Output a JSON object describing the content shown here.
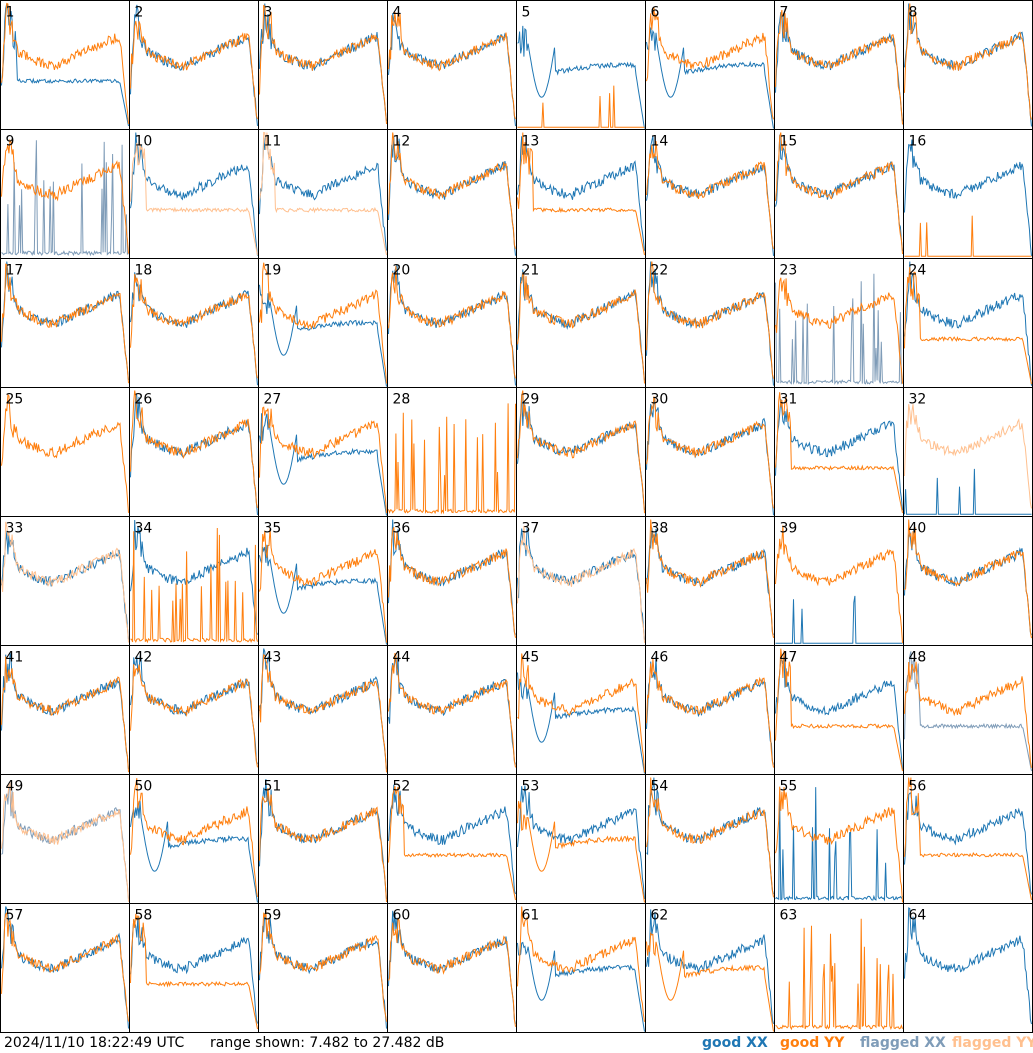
{
  "footer": {
    "timestamp": "2024/11/10 18:22:49 UTC",
    "range_text": "range shown: 7.482 to 27.482 dB",
    "legend": {
      "good_xx": "good XX",
      "good_yy": "good YY",
      "flagged_xx": "flagged XX",
      "flagged_yy": "flagged YY"
    }
  },
  "colors": {
    "good_xx": "#1f77b4",
    "good_yy": "#ff7f0e",
    "flagged_xx": "#7f9cb8",
    "flagged_yy": "#ffc08f"
  },
  "chart_data": {
    "type": "line",
    "grid": "8x8 small multiples, one panel per antenna",
    "ylim_db": [
      7.482,
      27.482
    ],
    "panels": [
      {
        "id": "1",
        "xx": "good",
        "yy": "good",
        "xx_shape": "lowplateau",
        "yy_shape": "standard"
      },
      {
        "id": "2",
        "xx": "good",
        "yy": "good",
        "xx_shape": "standard",
        "yy_shape": "standard"
      },
      {
        "id": "3",
        "xx": "good",
        "yy": "good",
        "xx_shape": "standard",
        "yy_shape": "standard"
      },
      {
        "id": "4",
        "xx": "good",
        "yy": "good",
        "xx_shape": "standard",
        "yy_shape": "standard"
      },
      {
        "id": "5",
        "xx": "good",
        "yy": "good",
        "xx_shape": "dip",
        "yy_shape": "dead"
      },
      {
        "id": "6",
        "xx": "good",
        "yy": "good",
        "xx_shape": "dip",
        "yy_shape": "standard"
      },
      {
        "id": "7",
        "xx": "good",
        "yy": "good",
        "xx_shape": "standard",
        "yy_shape": "standard"
      },
      {
        "id": "8",
        "xx": "good",
        "yy": "good",
        "xx_shape": "standard",
        "yy_shape": "standard"
      },
      {
        "id": "9",
        "xx": "flagged",
        "yy": "good",
        "xx_shape": "spiky",
        "yy_shape": "standard"
      },
      {
        "id": "10",
        "xx": "good",
        "yy": "flagged",
        "xx_shape": "standard",
        "yy_shape": "lowplateau"
      },
      {
        "id": "11",
        "xx": "good",
        "yy": "flagged",
        "xx_shape": "standard",
        "yy_shape": "lowplateau"
      },
      {
        "id": "12",
        "xx": "good",
        "yy": "good",
        "xx_shape": "standard",
        "yy_shape": "standard"
      },
      {
        "id": "13",
        "xx": "good",
        "yy": "good",
        "xx_shape": "standard",
        "yy_shape": "lowplateau"
      },
      {
        "id": "14",
        "xx": "good",
        "yy": "good",
        "xx_shape": "standard",
        "yy_shape": "standard"
      },
      {
        "id": "15",
        "xx": "good",
        "yy": "good",
        "xx_shape": "standard",
        "yy_shape": "standard"
      },
      {
        "id": "16",
        "xx": "good",
        "yy": "good",
        "xx_shape": "standard",
        "yy_shape": "dead"
      },
      {
        "id": "17",
        "xx": "good",
        "yy": "good",
        "xx_shape": "standard",
        "yy_shape": "standard"
      },
      {
        "id": "18",
        "xx": "good",
        "yy": "good",
        "xx_shape": "standard",
        "yy_shape": "standard"
      },
      {
        "id": "19",
        "xx": "good",
        "yy": "good",
        "xx_shape": "dip",
        "yy_shape": "standard"
      },
      {
        "id": "20",
        "xx": "good",
        "yy": "good",
        "xx_shape": "standard",
        "yy_shape": "standard"
      },
      {
        "id": "21",
        "xx": "good",
        "yy": "good",
        "xx_shape": "standard",
        "yy_shape": "standard"
      },
      {
        "id": "22",
        "xx": "good",
        "yy": "good",
        "xx_shape": "standard",
        "yy_shape": "standard"
      },
      {
        "id": "23",
        "xx": "flagged",
        "yy": "good",
        "xx_shape": "spiky",
        "yy_shape": "standard"
      },
      {
        "id": "24",
        "xx": "good",
        "yy": "good",
        "xx_shape": "standard",
        "yy_shape": "lowplateau"
      },
      {
        "id": "25",
        "xx": "good",
        "yy": "good",
        "xx_shape": "none",
        "yy_shape": "standard"
      },
      {
        "id": "26",
        "xx": "good",
        "yy": "good",
        "xx_shape": "standard",
        "yy_shape": "standard"
      },
      {
        "id": "27",
        "xx": "good",
        "yy": "good",
        "xx_shape": "dip",
        "yy_shape": "standard"
      },
      {
        "id": "28",
        "xx": "good",
        "yy": "good",
        "xx_shape": "none",
        "yy_shape": "spiky"
      },
      {
        "id": "29",
        "xx": "good",
        "yy": "good",
        "xx_shape": "standard",
        "yy_shape": "standard"
      },
      {
        "id": "30",
        "xx": "good",
        "yy": "good",
        "xx_shape": "standard",
        "yy_shape": "standard"
      },
      {
        "id": "31",
        "xx": "good",
        "yy": "good",
        "xx_shape": "standard",
        "yy_shape": "lowplateau"
      },
      {
        "id": "32",
        "xx": "good",
        "yy": "flagged",
        "xx_shape": "dead",
        "yy_shape": "standard"
      },
      {
        "id": "33",
        "xx": "good",
        "yy": "flagged",
        "xx_shape": "standard",
        "yy_shape": "standard"
      },
      {
        "id": "34",
        "xx": "good",
        "yy": "good",
        "xx_shape": "standard",
        "yy_shape": "spiky"
      },
      {
        "id": "35",
        "xx": "good",
        "yy": "good",
        "xx_shape": "dip",
        "yy_shape": "standard"
      },
      {
        "id": "36",
        "xx": "good",
        "yy": "good",
        "xx_shape": "standard",
        "yy_shape": "standard"
      },
      {
        "id": "37",
        "xx": "good",
        "yy": "flagged",
        "xx_shape": "standard",
        "yy_shape": "standard"
      },
      {
        "id": "38",
        "xx": "good",
        "yy": "good",
        "xx_shape": "standard",
        "yy_shape": "standard"
      },
      {
        "id": "39",
        "xx": "good",
        "yy": "good",
        "xx_shape": "dead",
        "yy_shape": "standard"
      },
      {
        "id": "40",
        "xx": "good",
        "yy": "good",
        "xx_shape": "standard",
        "yy_shape": "standard"
      },
      {
        "id": "41",
        "xx": "good",
        "yy": "good",
        "xx_shape": "standard",
        "yy_shape": "standard"
      },
      {
        "id": "42",
        "xx": "good",
        "yy": "good",
        "xx_shape": "standard",
        "yy_shape": "standard"
      },
      {
        "id": "43",
        "xx": "good",
        "yy": "good",
        "xx_shape": "standard",
        "yy_shape": "standard"
      },
      {
        "id": "44",
        "xx": "good",
        "yy": "good",
        "xx_shape": "standard",
        "yy_shape": "standard"
      },
      {
        "id": "45",
        "xx": "good",
        "yy": "good",
        "xx_shape": "dip",
        "yy_shape": "standard"
      },
      {
        "id": "46",
        "xx": "good",
        "yy": "good",
        "xx_shape": "standard",
        "yy_shape": "standard"
      },
      {
        "id": "47",
        "xx": "good",
        "yy": "good",
        "xx_shape": "standard",
        "yy_shape": "lowplateau"
      },
      {
        "id": "48",
        "xx": "flagged",
        "yy": "good",
        "xx_shape": "lowplateau",
        "yy_shape": "standard"
      },
      {
        "id": "49",
        "xx": "flagged",
        "yy": "flagged",
        "xx_shape": "standard",
        "yy_shape": "standard"
      },
      {
        "id": "50",
        "xx": "good",
        "yy": "good",
        "xx_shape": "dip",
        "yy_shape": "standard"
      },
      {
        "id": "51",
        "xx": "good",
        "yy": "good",
        "xx_shape": "standard",
        "yy_shape": "standard"
      },
      {
        "id": "52",
        "xx": "good",
        "yy": "good",
        "xx_shape": "standard",
        "yy_shape": "lowplateau"
      },
      {
        "id": "53",
        "xx": "good",
        "yy": "good",
        "xx_shape": "standard",
        "yy_shape": "dip"
      },
      {
        "id": "54",
        "xx": "good",
        "yy": "good",
        "xx_shape": "standard",
        "yy_shape": "standard"
      },
      {
        "id": "55",
        "xx": "good",
        "yy": "good",
        "xx_shape": "spiky",
        "yy_shape": "standard"
      },
      {
        "id": "56",
        "xx": "good",
        "yy": "good",
        "xx_shape": "standard",
        "yy_shape": "lowplateau"
      },
      {
        "id": "57",
        "xx": "good",
        "yy": "good",
        "xx_shape": "standard",
        "yy_shape": "standard"
      },
      {
        "id": "58",
        "xx": "good",
        "yy": "good",
        "xx_shape": "standard",
        "yy_shape": "lowplateau"
      },
      {
        "id": "59",
        "xx": "good",
        "yy": "good",
        "xx_shape": "standard",
        "yy_shape": "standard"
      },
      {
        "id": "60",
        "xx": "good",
        "yy": "good",
        "xx_shape": "standard",
        "yy_shape": "standard"
      },
      {
        "id": "61",
        "xx": "good",
        "yy": "good",
        "xx_shape": "dip",
        "yy_shape": "standard"
      },
      {
        "id": "62",
        "xx": "good",
        "yy": "good",
        "xx_shape": "standard",
        "yy_shape": "dip"
      },
      {
        "id": "63",
        "xx": "good",
        "yy": "good",
        "xx_shape": "none",
        "yy_shape": "spiky"
      },
      {
        "id": "64",
        "xx": "good",
        "yy": "good",
        "xx_shape": "standard",
        "yy_shape": "none"
      }
    ]
  }
}
